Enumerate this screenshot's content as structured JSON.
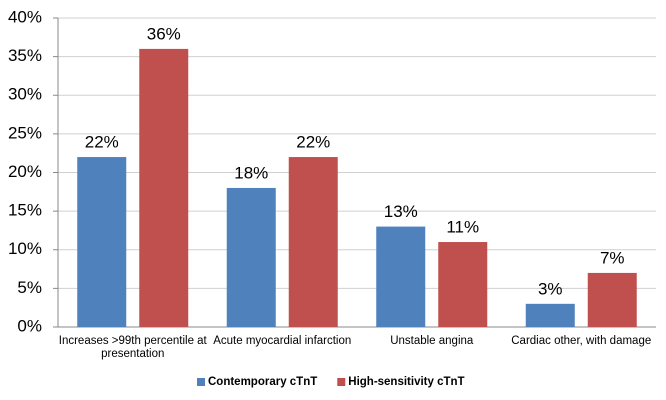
{
  "chart_data": {
    "type": "bar",
    "categories": [
      "Increases >99th percentile at presentation",
      "Acute myocardial infarction",
      "Unstable angina",
      "Cardiac other, with damage"
    ],
    "series": [
      {
        "name": "Contemporary cTnT",
        "color": "#4f81bd",
        "values": [
          22,
          18,
          13,
          3
        ],
        "value_labels": [
          "22%",
          "18%",
          "13%",
          "3%"
        ]
      },
      {
        "name": "High-sensitivity cTnT",
        "color": "#c0504d",
        "values": [
          36,
          22,
          11,
          7
        ],
        "value_labels": [
          "36%",
          "22%",
          "11%",
          "7%"
        ]
      }
    ],
    "ylim": [
      0,
      40
    ],
    "yticks": [
      {
        "value": 0,
        "label": "0%"
      },
      {
        "value": 5,
        "label": "5%"
      },
      {
        "value": 10,
        "label": "10%"
      },
      {
        "value": 15,
        "label": "15%"
      },
      {
        "value": 20,
        "label": "20%"
      },
      {
        "value": 25,
        "label": "25%"
      },
      {
        "value": 30,
        "label": "30%"
      },
      {
        "value": 35,
        "label": "35%"
      },
      {
        "value": 40,
        "label": "40%"
      }
    ],
    "grid": true,
    "legend": "bottom"
  }
}
